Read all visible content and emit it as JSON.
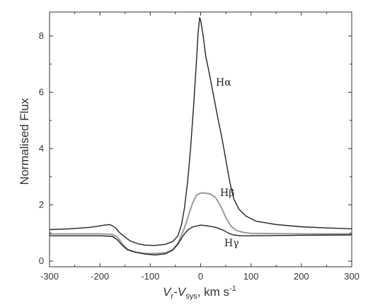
{
  "chart_data": {
    "type": "line",
    "title": "",
    "ylabel": "Normalised Flux",
    "xlabel": {
      "v": "V",
      "r": "r",
      "dash": "-",
      "vsys": "V",
      "sys": "sys",
      "units": ", km s",
      "exp": "-1"
    },
    "xlim": [
      -300,
      300
    ],
    "ylim": [
      -0.2,
      8.85
    ],
    "x_ticks": [
      -300,
      -200,
      -100,
      0,
      100,
      200,
      300
    ],
    "y_ticks": [
      0,
      2,
      4,
      6,
      8
    ],
    "grid": false,
    "series": [
      {
        "name": "Hα",
        "color": "#222222",
        "points": [
          [
            -300,
            1.12
          ],
          [
            -260,
            1.15
          ],
          [
            -220,
            1.2
          ],
          [
            -190,
            1.28
          ],
          [
            -180,
            1.3
          ],
          [
            -170,
            1.2
          ],
          [
            -160,
            1.0
          ],
          [
            -150,
            0.85
          ],
          [
            -140,
            0.72
          ],
          [
            -125,
            0.62
          ],
          [
            -110,
            0.57
          ],
          [
            -90,
            0.56
          ],
          [
            -70,
            0.6
          ],
          [
            -55,
            0.7
          ],
          [
            -45,
            0.9
          ],
          [
            -38,
            1.3
          ],
          [
            -32,
            1.9
          ],
          [
            -26,
            2.8
          ],
          [
            -20,
            4.0
          ],
          [
            -14,
            5.5
          ],
          [
            -9,
            6.9
          ],
          [
            -5,
            8.1
          ],
          [
            -2,
            8.65
          ],
          [
            0,
            8.55
          ],
          [
            5,
            8.0
          ],
          [
            10,
            7.3
          ],
          [
            18,
            6.6
          ],
          [
            26,
            5.85
          ],
          [
            34,
            5.1
          ],
          [
            42,
            4.4
          ],
          [
            50,
            3.6
          ],
          [
            58,
            2.8
          ],
          [
            66,
            2.2
          ],
          [
            76,
            1.85
          ],
          [
            90,
            1.6
          ],
          [
            110,
            1.42
          ],
          [
            150,
            1.3
          ],
          [
            200,
            1.22
          ],
          [
            250,
            1.18
          ],
          [
            300,
            1.15
          ]
        ]
      },
      {
        "name": "Hβ",
        "color": "#9a9a9a",
        "points": [
          [
            -300,
            0.97
          ],
          [
            -250,
            0.97
          ],
          [
            -200,
            0.97
          ],
          [
            -175,
            0.95
          ],
          [
            -165,
            0.85
          ],
          [
            -155,
            0.6
          ],
          [
            -145,
            0.42
          ],
          [
            -130,
            0.32
          ],
          [
            -110,
            0.27
          ],
          [
            -90,
            0.27
          ],
          [
            -70,
            0.3
          ],
          [
            -55,
            0.4
          ],
          [
            -45,
            0.65
          ],
          [
            -35,
            1.05
          ],
          [
            -28,
            1.4
          ],
          [
            -22,
            1.75
          ],
          [
            -15,
            2.1
          ],
          [
            -8,
            2.35
          ],
          [
            0,
            2.42
          ],
          [
            10,
            2.42
          ],
          [
            20,
            2.38
          ],
          [
            30,
            2.25
          ],
          [
            40,
            1.95
          ],
          [
            50,
            1.55
          ],
          [
            60,
            1.25
          ],
          [
            70,
            1.1
          ],
          [
            85,
            1.02
          ],
          [
            100,
            0.99
          ],
          [
            150,
            0.98
          ],
          [
            200,
            0.97
          ],
          [
            300,
            0.97
          ]
        ]
      },
      {
        "name": "Hγ",
        "color": "#222222",
        "points": [
          [
            -300,
            0.9
          ],
          [
            -250,
            0.9
          ],
          [
            -200,
            0.9
          ],
          [
            -175,
            0.88
          ],
          [
            -165,
            0.75
          ],
          [
            -155,
            0.55
          ],
          [
            -145,
            0.4
          ],
          [
            -130,
            0.32
          ],
          [
            -110,
            0.25
          ],
          [
            -90,
            0.22
          ],
          [
            -70,
            0.26
          ],
          [
            -55,
            0.4
          ],
          [
            -45,
            0.6
          ],
          [
            -35,
            0.9
          ],
          [
            -25,
            1.12
          ],
          [
            -15,
            1.22
          ],
          [
            0,
            1.28
          ],
          [
            15,
            1.25
          ],
          [
            30,
            1.2
          ],
          [
            45,
            1.1
          ],
          [
            55,
            1.0
          ],
          [
            65,
            0.93
          ],
          [
            80,
            0.9
          ],
          [
            100,
            0.9
          ],
          [
            200,
            0.92
          ],
          [
            300,
            0.93
          ]
        ]
      }
    ]
  }
}
